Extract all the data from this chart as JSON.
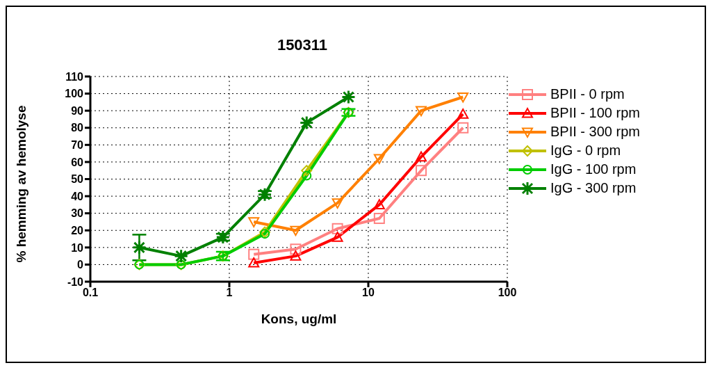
{
  "chart_data": {
    "type": "line",
    "title": "150311",
    "xlabel": "Kons, ug/ml",
    "ylabel": "% hemming av hemolyse",
    "log": "x",
    "xlim": [
      0.1,
      100
    ],
    "xticks": [
      0.1,
      1,
      10,
      100
    ],
    "ylim": [
      -10,
      110
    ],
    "yticks": [
      -10,
      0,
      10,
      20,
      30,
      40,
      50,
      60,
      70,
      80,
      90,
      100,
      110
    ],
    "grid": true,
    "legend": "right",
    "line_style": "solid",
    "series": [
      {
        "name": "BPII - 0 rpm",
        "color": "#ff8080",
        "marker": "square",
        "x": [
          1.5,
          3,
          6,
          12,
          24,
          48
        ],
        "values": [
          6,
          9,
          21,
          27,
          55,
          80
        ]
      },
      {
        "name": "BPII - 100 rpm",
        "color": "#ff0000",
        "marker": "triangle",
        "x": [
          1.5,
          3,
          6,
          12,
          24,
          48
        ],
        "values": [
          1,
          5,
          16,
          35,
          63,
          88
        ]
      },
      {
        "name": "BPII - 300 rpm",
        "color": "#ff8000",
        "marker": "triangle",
        "x": [
          1.5,
          3,
          6,
          12,
          24,
          48
        ],
        "values": [
          25,
          20,
          36,
          62,
          90,
          98
        ]
      },
      {
        "name": "IgG - 0 rpm",
        "color": "#c0c000",
        "marker": "diamond",
        "x": [
          0.225,
          0.45,
          0.9,
          1.8,
          3.6,
          7.2
        ],
        "values": [
          0,
          0,
          5,
          19,
          55,
          89
        ]
      },
      {
        "name": "IgG - 100 rpm",
        "color": "#00cc00",
        "marker": "circle",
        "x": [
          0.225,
          0.45,
          0.9,
          1.8,
          3.6,
          7.2
        ],
        "values": [
          0,
          0,
          5,
          18,
          52,
          89
        ],
        "errors": [
          null,
          null,
          2.5,
          null,
          null,
          2
        ]
      },
      {
        "name": "IgG - 300 rpm",
        "color": "#008000",
        "marker": "cross",
        "x": [
          0.225,
          0.45,
          0.9,
          1.8,
          3.6,
          7.2
        ],
        "values": [
          10,
          5,
          16,
          41,
          83,
          98
        ],
        "errors": [
          7.5,
          null,
          2,
          2,
          null,
          null
        ]
      }
    ]
  }
}
